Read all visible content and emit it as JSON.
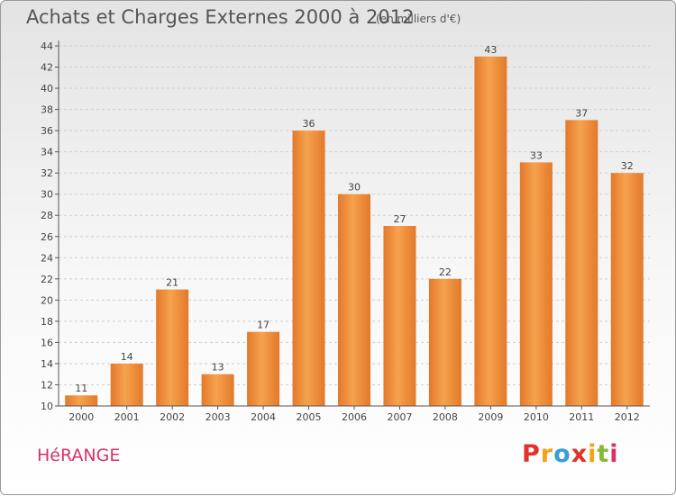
{
  "header": {
    "title": "Achats et Charges Externes 2000 à 2012",
    "subtitle": "(en milliers d'€)"
  },
  "footer": {
    "commune": "HéRANGE",
    "logo_letters": [
      "P",
      "r",
      "o",
      "x",
      "i",
      "t",
      "i"
    ],
    "logo_colors": [
      "#e0312b",
      "#f2a21b",
      "#3a9dd8",
      "#e0312b",
      "#f2a21b",
      "#86b83a",
      "#d9306a"
    ]
  },
  "colors": {
    "bar_dark": "#e3792a",
    "bar_light": "#f6a24e",
    "axis": "#555555",
    "grid": "#cfcfcf"
  },
  "chart_data": {
    "type": "bar",
    "title": "Achats et Charges Externes 2000 à 2012",
    "subtitle": "(en milliers d'€)",
    "categories": [
      "2000",
      "2001",
      "2002",
      "2003",
      "2004",
      "2005",
      "2006",
      "2007",
      "2008",
      "2009",
      "2010",
      "2011",
      "2012"
    ],
    "values": [
      11,
      14,
      21,
      13,
      17,
      36,
      30,
      27,
      22,
      43,
      33,
      37,
      32
    ],
    "data_labels": [
      "11",
      "14",
      "21",
      "13",
      "17",
      "36",
      "30",
      "27",
      "22",
      "43",
      "33",
      "37",
      "32"
    ],
    "yticks": [
      "10",
      "12",
      "14",
      "16",
      "18",
      "20",
      "22",
      "24",
      "26",
      "28",
      "30",
      "32",
      "34",
      "36",
      "38",
      "40",
      "42",
      "44"
    ],
    "ylim": [
      10,
      44
    ],
    "grid": true,
    "xlabel": "",
    "ylabel": ""
  }
}
